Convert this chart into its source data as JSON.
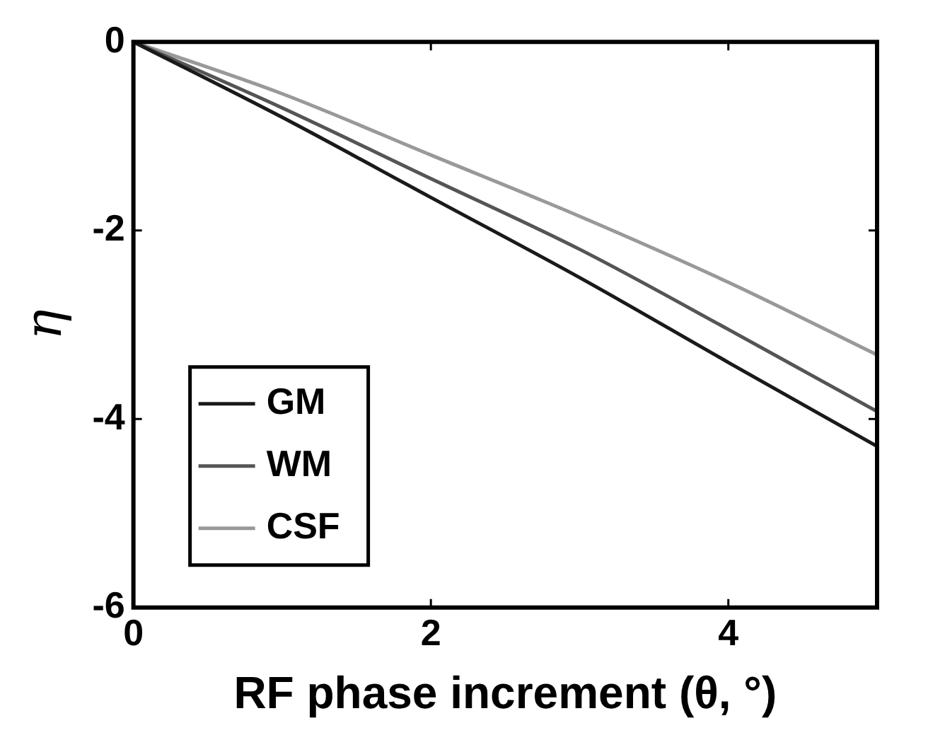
{
  "chart_data": {
    "type": "line",
    "xlabel": "RF phase increment (θ, °)",
    "ylabel": "η",
    "x": [
      0,
      1,
      2,
      3,
      4,
      5
    ],
    "series": [
      {
        "name": "GM",
        "color": "#1a1a1a",
        "values": [
          0,
          -0.8,
          -1.65,
          -2.5,
          -3.4,
          -4.29
        ]
      },
      {
        "name": "WM",
        "color": "#555555",
        "values": [
          0,
          -0.7,
          -1.45,
          -2.2,
          -3.05,
          -3.92
        ]
      },
      {
        "name": "CSF",
        "color": "#999999",
        "values": [
          0,
          -0.55,
          -1.2,
          -1.85,
          -2.55,
          -3.32
        ]
      }
    ],
    "xlim": [
      0,
      5
    ],
    "xticks": [
      0,
      2,
      4
    ],
    "ylim": [
      -6,
      0
    ],
    "yticks": [
      0,
      -2,
      -4,
      -6
    ],
    "grid": false,
    "legend": "bottom left",
    "marker": "none",
    "line_style": "solid"
  }
}
